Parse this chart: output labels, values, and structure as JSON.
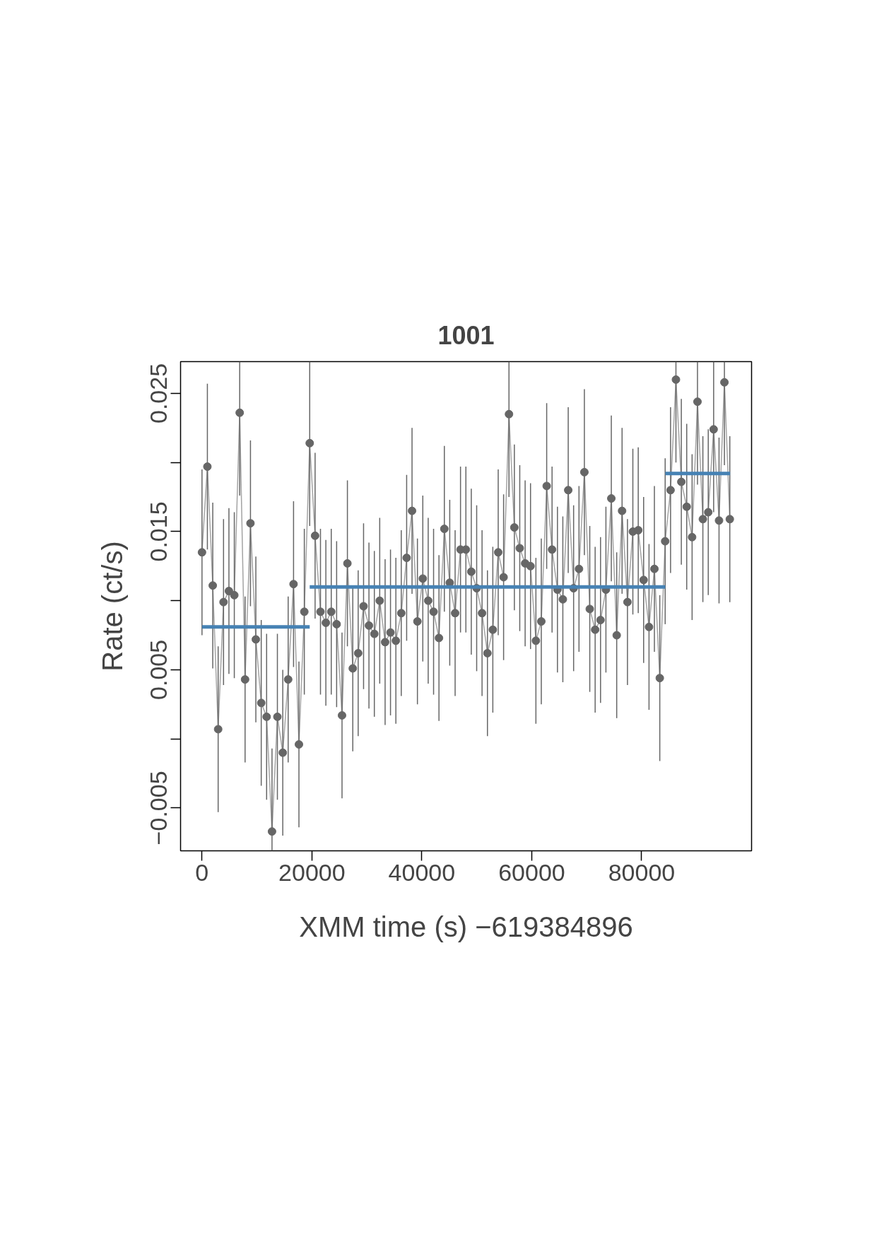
{
  "chart_data": {
    "type": "line",
    "title": "1001",
    "xlabel": "XMM time (s) −619384896",
    "ylabel": "Rate (ct/s)",
    "xlim": [
      -3900,
      100000
    ],
    "ylim": [
      -0.0081,
      0.0273
    ],
    "xticks": [
      0,
      20000,
      40000,
      60000,
      80000
    ],
    "yticks": [
      {
        "value": -0.005,
        "label": "−0.005"
      },
      {
        "value": 0,
        "label": null
      },
      0.005,
      {
        "value": 0.01,
        "label": null
      },
      0.015,
      {
        "value": 0.02,
        "label": null
      },
      0.025
    ],
    "grid": false,
    "line_style": "solid",
    "series": [
      {
        "color": "#666666",
        "marker": "circle",
        "errors": [
          0.006,
          0.006,
          0.006,
          0.006,
          0.006,
          0.006,
          0.006,
          [
            0.0176,
            0.0273
          ],
          0.006,
          0.006,
          0.006,
          0.006,
          0.006,
          [
            -0.0081,
            -0.0007
          ],
          0.006,
          0.006,
          0.006,
          0.006,
          0.006,
          0.006,
          [
            0.0154,
            0.0273
          ],
          0.006,
          0.006,
          0.006,
          0.006,
          0.006,
          0.006,
          0.006,
          0.006,
          0.006,
          0.006,
          0.006,
          0.006,
          0.006,
          0.006,
          0.006,
          0.006,
          0.006,
          0.006,
          0.006,
          0.006,
          0.006,
          0.006,
          0.006,
          0.006,
          0.006,
          0.006,
          0.006,
          0.006,
          0.006,
          0.006,
          0.006,
          0.006,
          0.006,
          0.006,
          0.006,
          0.006,
          [
            0.0175,
            0.0273
          ],
          0.006,
          0.006,
          0.006,
          0.006,
          0.006,
          0.006,
          0.006,
          0.006,
          0.006,
          0.006,
          0.006,
          0.006,
          0.006,
          0.006,
          0.006,
          0.006,
          0.006,
          0.006,
          0.006,
          0.006,
          0.006,
          0.006,
          0.006,
          0.006,
          0.006,
          0.006,
          0.006,
          0.006,
          0.006,
          0.006,
          [
            0.02,
            0.0273
          ],
          0.006,
          0.006,
          0.006,
          [
            0.0184,
            0.0273
          ],
          0.006,
          0.006,
          [
            0.0164,
            0.0273
          ],
          0.006,
          [
            0.0198,
            0.0273
          ],
          0.006
        ],
        "x": [
          0,
          980,
          1960,
          2940,
          3920,
          4900,
          5880,
          6860,
          7840,
          8820,
          9800,
          10780,
          11760,
          12740,
          13720,
          14700,
          15680,
          16660,
          17640,
          18620,
          19600,
          20580,
          21560,
          22540,
          23520,
          24500,
          25480,
          26460,
          27440,
          28420,
          29400,
          30380,
          31360,
          32340,
          33320,
          34300,
          35280,
          36260,
          37240,
          38220,
          39200,
          40180,
          41160,
          42140,
          43120,
          44100,
          45080,
          46060,
          47040,
          48020,
          49000,
          49980,
          50960,
          51940,
          52920,
          53900,
          54880,
          55860,
          56840,
          57820,
          58800,
          59780,
          60760,
          61740,
          62720,
          63700,
          64680,
          65660,
          66640,
          67620,
          68600,
          69580,
          70560,
          71540,
          72520,
          73500,
          74480,
          75460,
          76440,
          77420,
          78400,
          79380,
          80360,
          81340,
          82320,
          83300,
          84280,
          85260,
          86240,
          87220,
          88200,
          89180,
          90160,
          91140,
          92120,
          93100,
          94080,
          95060,
          96040
        ],
        "values": [
          0.0135,
          0.0197,
          0.0111,
          0.0007,
          0.0099,
          0.0107,
          0.0104,
          0.0236,
          0.0043,
          0.0156,
          0.0072,
          0.0026,
          0.0016,
          -0.0067,
          0.0016,
          -0.001,
          0.0043,
          0.0112,
          -0.0004,
          0.0092,
          0.0214,
          0.0147,
          0.0092,
          0.0084,
          0.0092,
          0.0083,
          0.0017,
          0.0127,
          0.0051,
          0.0062,
          0.0096,
          0.0082,
          0.0076,
          0.01,
          0.007,
          0.0077,
          0.0071,
          0.0091,
          0.0131,
          0.0165,
          0.0085,
          0.0116,
          0.01,
          0.0092,
          0.0073,
          0.0152,
          0.0113,
          0.0091,
          0.0137,
          0.0137,
          0.0121,
          0.0109,
          0.0091,
          0.0062,
          0.0079,
          0.0135,
          0.0117,
          0.0235,
          0.0153,
          0.0138,
          0.0127,
          0.0125,
          0.0071,
          0.0085,
          0.0183,
          0.0137,
          0.0108,
          0.0101,
          0.018,
          0.0109,
          0.0123,
          0.0193,
          0.0094,
          0.0079,
          0.0086,
          0.0108,
          0.0174,
          0.0075,
          0.0165,
          0.0099,
          0.015,
          0.0151,
          0.0115,
          0.0081,
          0.0123,
          0.0044,
          0.0143,
          0.018,
          0.026,
          0.0186,
          0.0168,
          0.0146,
          0.0244,
          0.0159,
          0.0164,
          0.0224,
          0.0158,
          0.0258,
          0.0159
        ]
      },
      {
        "marker": "none",
        "color": "#4682b4",
        "x": [
          0,
          19600
        ],
        "values": [
          0.0081,
          0.0081
        ]
      },
      {
        "marker": "none",
        "color": "#4682b4",
        "x": [
          19600,
          84300
        ],
        "values": [
          0.011,
          0.011
        ]
      },
      {
        "marker": "none",
        "color": "#4682b4",
        "x": [
          84300,
          96100
        ],
        "values": [
          0.0192,
          0.0192
        ]
      }
    ]
  }
}
